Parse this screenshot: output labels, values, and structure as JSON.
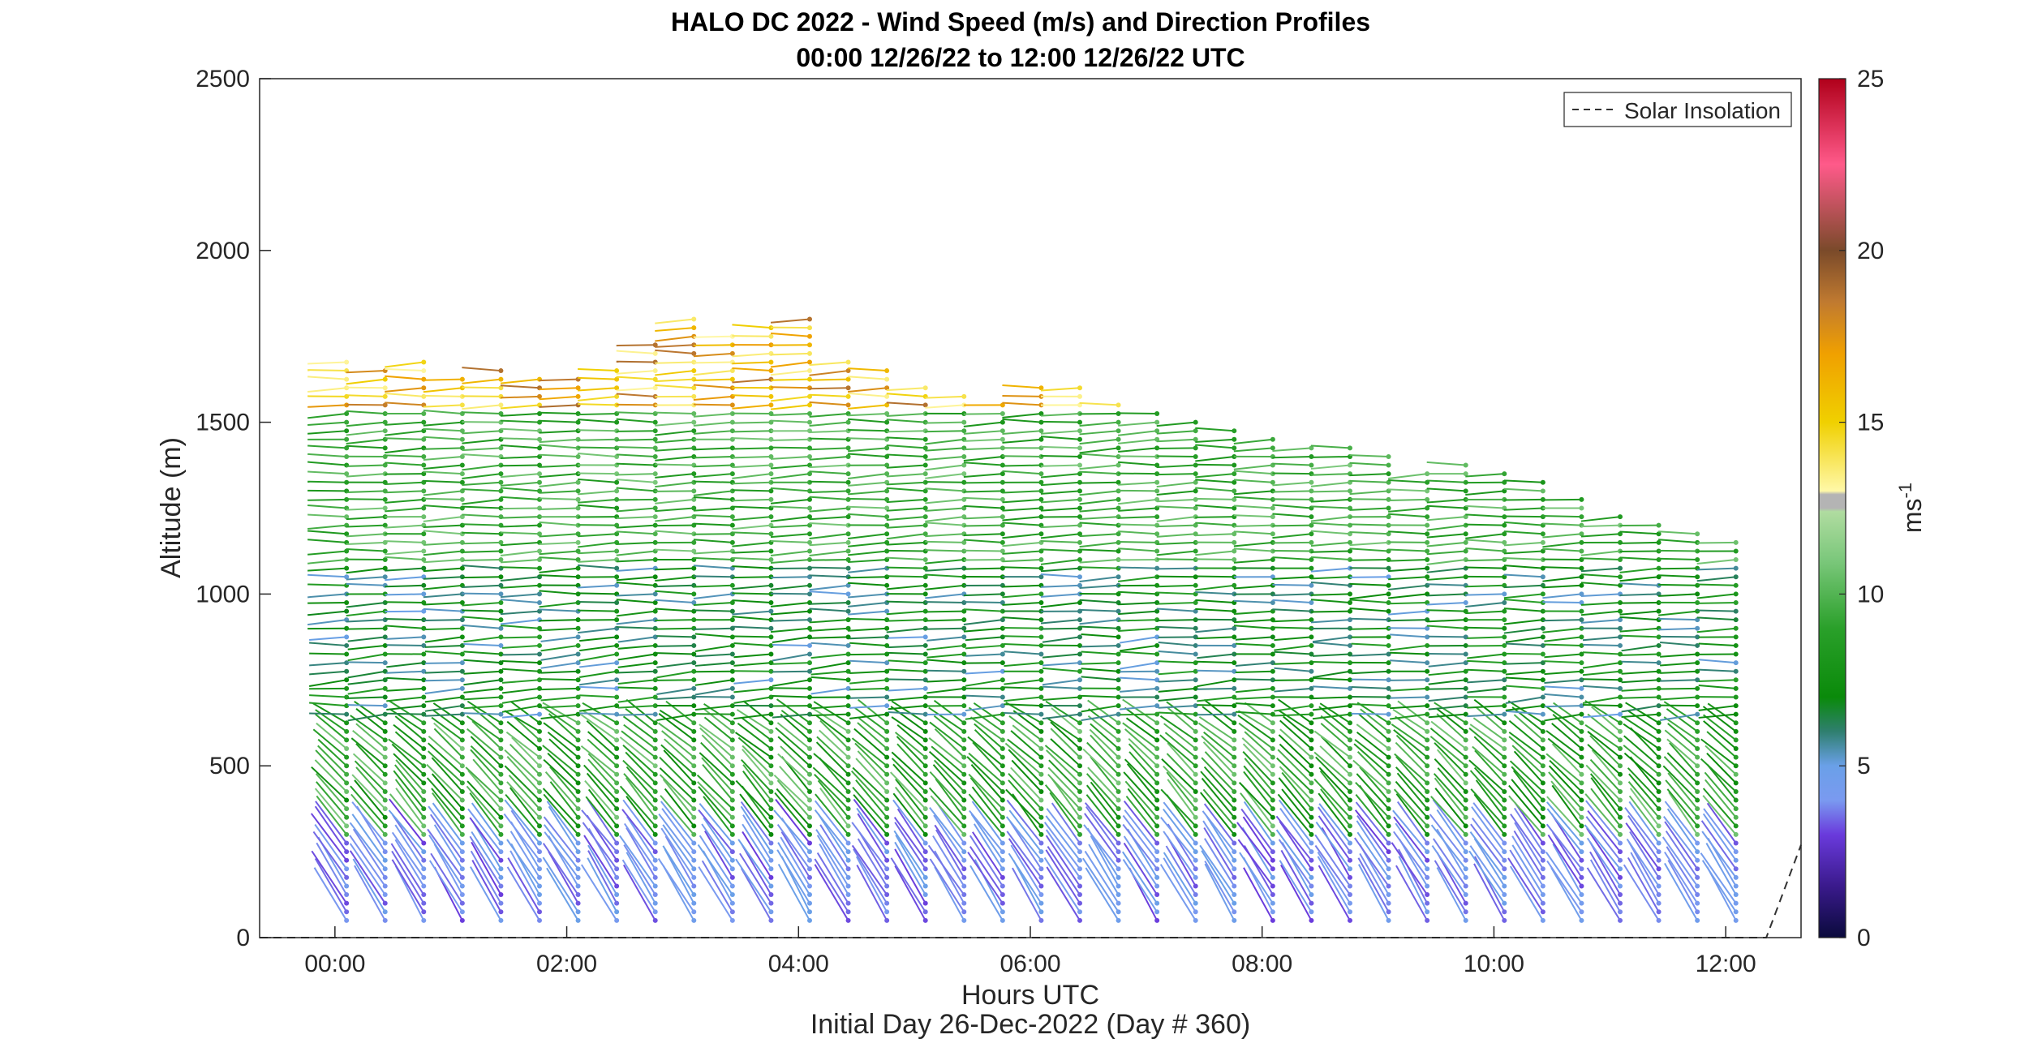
{
  "chart_data": {
    "type": "barb-profile",
    "title": "HALO DC 2022 - Wind Speed (m/s) and Direction Profiles",
    "subtitle": "00:00 12/26/22 to 12:00 12/26/22  UTC",
    "xlabel": "Hours UTC",
    "ylabel": "Altitude (m)",
    "footer": "Initial Day 26-Dec-2022 (Day # 360)",
    "xlim_hours": [
      -0.65,
      12.65
    ],
    "ylim": [
      0,
      2500
    ],
    "x_ticks": [
      {
        "hour": 0,
        "label": "00:00"
      },
      {
        "hour": 2,
        "label": "02:00"
      },
      {
        "hour": 4,
        "label": "04:00"
      },
      {
        "hour": 6,
        "label": "06:00"
      },
      {
        "hour": 8,
        "label": "08:00"
      },
      {
        "hour": 10,
        "label": "10:00"
      },
      {
        "hour": 12,
        "label": "12:00"
      }
    ],
    "y_ticks": [
      {
        "value": 0,
        "label": "0"
      },
      {
        "value": 500,
        "label": "500"
      },
      {
        "value": 1000,
        "label": "1000"
      },
      {
        "value": 1500,
        "label": "1500"
      },
      {
        "value": 2000,
        "label": "2000"
      },
      {
        "value": 2500,
        "label": "2500"
      }
    ],
    "colorbar": {
      "label": "ms",
      "label_superscript": "-1",
      "range": [
        0,
        25
      ],
      "ticks": [
        {
          "value": 0,
          "label": "0"
        },
        {
          "value": 5,
          "label": "5"
        },
        {
          "value": 10,
          "label": "10"
        },
        {
          "value": 15,
          "label": "15"
        },
        {
          "value": 20,
          "label": "20"
        },
        {
          "value": 25,
          "label": "25"
        }
      ],
      "stops": [
        {
          "v": 0,
          "c": "#0a0a3c"
        },
        {
          "v": 1.5,
          "c": "#3a1a8c"
        },
        {
          "v": 3,
          "c": "#6a3adc"
        },
        {
          "v": 4,
          "c": "#7a9af0"
        },
        {
          "v": 5,
          "c": "#6aa0e8"
        },
        {
          "v": 6,
          "c": "#2f7f6f"
        },
        {
          "v": 7,
          "c": "#0a8a0a"
        },
        {
          "v": 9,
          "c": "#2aa02a"
        },
        {
          "v": 11,
          "c": "#7cc87c"
        },
        {
          "v": 12.4,
          "c": "#b0dca0"
        },
        {
          "v": 12.5,
          "c": "#b4b4b4"
        },
        {
          "v": 12.9,
          "c": "#b4b4b4"
        },
        {
          "v": 13,
          "c": "#fff8a8"
        },
        {
          "v": 15,
          "c": "#f0d000"
        },
        {
          "v": 17,
          "c": "#f0a000"
        },
        {
          "v": 18.5,
          "c": "#c07a30"
        },
        {
          "v": 20,
          "c": "#7a4a2a"
        },
        {
          "v": 22.5,
          "c": "#ff5a8a"
        },
        {
          "v": 25,
          "c": "#b0001a"
        }
      ]
    },
    "legend": {
      "position": "top-right",
      "entries": [
        {
          "label": "Solar Insolation",
          "style": "dashed",
          "color": "#333333"
        }
      ]
    },
    "series": [
      {
        "name": "Solar Insolation",
        "type": "line",
        "style": "dashed",
        "x": [
          -0.65,
          12.35,
          12.65
        ],
        "y": [
          0,
          0,
          270
        ]
      }
    ],
    "profiles": {
      "time_start_hours": 0.1,
      "time_step_hours": 0.333,
      "count": 37,
      "alt_step_m": 25,
      "alt_bottom_m": 50,
      "top_altitude_m": [
        1680,
        1660,
        1680,
        1640,
        1650,
        1630,
        1640,
        1660,
        1740,
        1800,
        1770,
        1780,
        1800,
        1680,
        1660,
        1620,
        1590,
        1550,
        1600,
        1600,
        1560,
        1540,
        1500,
        1480,
        1460,
        1440,
        1430,
        1400,
        1360,
        1390,
        1360,
        1330,
        1280,
        1240,
        1210,
        1180,
        1150
      ],
      "wind_speed_description_by_layer": [
        {
          "alt": [
            0,
            300
          ],
          "speed_ms": [
            3,
            5
          ]
        },
        {
          "alt": [
            300,
            650
          ],
          "speed_ms": [
            7,
            11
          ]
        },
        {
          "alt": [
            650,
            1100
          ],
          "speed_ms": [
            5,
            9
          ]
        },
        {
          "alt": [
            1100,
            1550
          ],
          "speed_ms": [
            8,
            11
          ]
        },
        {
          "alt": [
            1550,
            1800
          ],
          "speed_ms": [
            13,
            19
          ]
        }
      ]
    }
  }
}
